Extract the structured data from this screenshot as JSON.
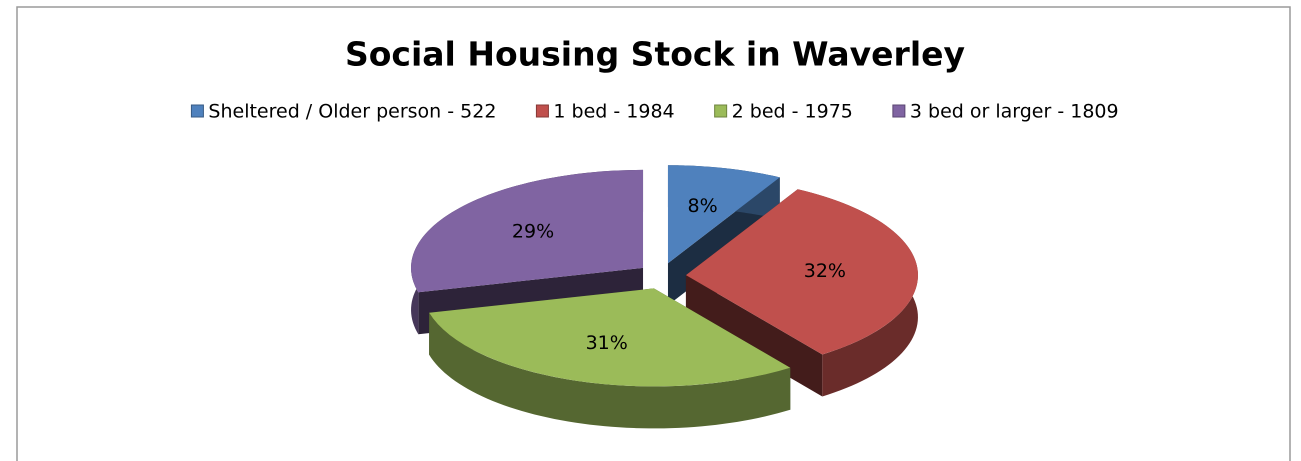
{
  "chart_data": {
    "type": "pie3d",
    "title": "Social Housing Stock in Waverley",
    "categories": [
      "Sheltered / Older person - 522",
      "1 bed - 1984",
      "2 bed - 1975",
      "3 bed or larger - 1809"
    ],
    "values": [
      8,
      32,
      31,
      29
    ],
    "value_labels": [
      "8%",
      "32%",
      "31%",
      "29%"
    ],
    "colors": [
      "#4f81bd",
      "#c0504d",
      "#9bbb59",
      "#8064a2"
    ],
    "legend": "top"
  }
}
